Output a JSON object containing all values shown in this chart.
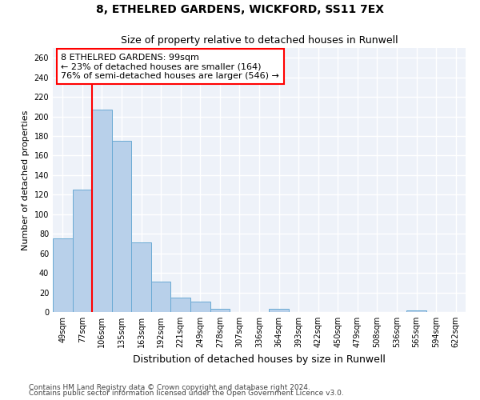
{
  "title": "8, ETHELRED GARDENS, WICKFORD, SS11 7EX",
  "subtitle": "Size of property relative to detached houses in Runwell",
  "xlabel": "Distribution of detached houses by size in Runwell",
  "ylabel": "Number of detached properties",
  "categories": [
    "49sqm",
    "77sqm",
    "106sqm",
    "135sqm",
    "163sqm",
    "192sqm",
    "221sqm",
    "249sqm",
    "278sqm",
    "307sqm",
    "336sqm",
    "364sqm",
    "393sqm",
    "422sqm",
    "450sqm",
    "479sqm",
    "508sqm",
    "536sqm",
    "565sqm",
    "594sqm",
    "622sqm"
  ],
  "values": [
    75,
    125,
    207,
    175,
    71,
    31,
    15,
    11,
    3,
    0,
    0,
    3,
    0,
    0,
    0,
    0,
    0,
    0,
    2,
    0,
    0
  ],
  "bar_color": "#b8d0ea",
  "bar_edge_color": "#6aaad4",
  "red_line_x": 1.5,
  "annotation_text": "8 ETHELRED GARDENS: 99sqm\n← 23% of detached houses are smaller (164)\n76% of semi-detached houses are larger (546) →",
  "footer1": "Contains HM Land Registry data © Crown copyright and database right 2024.",
  "footer2": "Contains public sector information licensed under the Open Government Licence v3.0.",
  "ylim": [
    0,
    270
  ],
  "yticks": [
    0,
    20,
    40,
    60,
    80,
    100,
    120,
    140,
    160,
    180,
    200,
    220,
    240,
    260
  ],
  "background_color": "#eef2f9",
  "grid_color": "white",
  "title_fontsize": 10,
  "subtitle_fontsize": 9,
  "ylabel_fontsize": 8,
  "xlabel_fontsize": 9,
  "tick_fontsize": 7,
  "annotation_fontsize": 8,
  "footer_fontsize": 6.5
}
